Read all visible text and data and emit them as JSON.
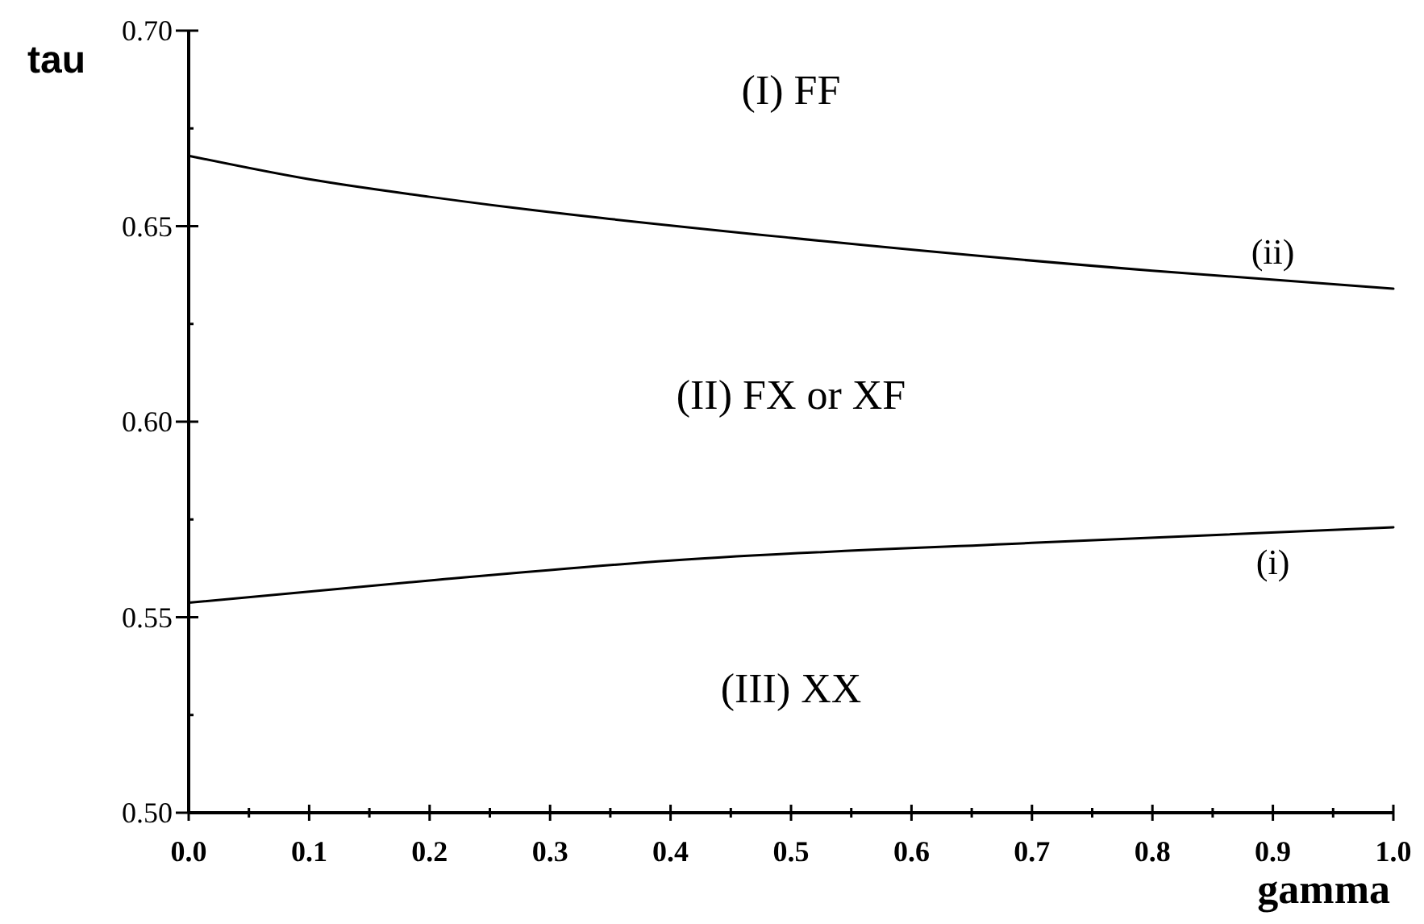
{
  "chart_data": {
    "type": "line",
    "xlabel": "gamma",
    "ylabel": "tau",
    "series": [
      {
        "name": "(ii)",
        "color": "#000000",
        "x": [
          0,
          0.1,
          0.2,
          0.5,
          0.8,
          1.0
        ],
        "values": [
          0.668,
          0.662,
          0.6575,
          0.647,
          0.6386,
          0.634
        ]
      },
      {
        "name": "(i)",
        "color": "#000000",
        "x": [
          0,
          0.2,
          0.4,
          0.7,
          1.0
        ],
        "values": [
          0.5537,
          0.5594,
          0.5645,
          0.569,
          0.573
        ]
      }
    ],
    "xlim": [
      0,
      1.0
    ],
    "ylim": [
      0.5,
      0.7
    ],
    "xticks": [
      {
        "value": 0,
        "label": "0.0"
      },
      {
        "value": 0.05,
        "label": null
      },
      {
        "value": 0.1,
        "label": "0.1"
      },
      {
        "value": 0.15,
        "label": null
      },
      {
        "value": 0.2,
        "label": "0.2"
      },
      {
        "value": 0.25,
        "label": null
      },
      {
        "value": 0.3,
        "label": "0.3"
      },
      {
        "value": 0.35,
        "label": null
      },
      {
        "value": 0.4,
        "label": "0.4"
      },
      {
        "value": 0.45,
        "label": null
      },
      {
        "value": 0.5,
        "label": "0.5"
      },
      {
        "value": 0.55,
        "label": null
      },
      {
        "value": 0.6,
        "label": "0.6"
      },
      {
        "value": 0.65,
        "label": null
      },
      {
        "value": 0.7,
        "label": "0.7"
      },
      {
        "value": 0.75,
        "label": null
      },
      {
        "value": 0.8,
        "label": "0.8"
      },
      {
        "value": 0.85,
        "label": null
      },
      {
        "value": 0.9,
        "label": "0.9"
      },
      {
        "value": 0.95,
        "label": null
      },
      {
        "value": 1.0,
        "label": "1.0"
      }
    ],
    "yticks": [
      {
        "value": 0.5,
        "label": "0.50"
      },
      {
        "value": 0.525,
        "label": null
      },
      {
        "value": 0.55,
        "label": "0.55"
      },
      {
        "value": 0.575,
        "label": null
      },
      {
        "value": 0.6,
        "label": "0.60"
      },
      {
        "value": 0.625,
        "label": null
      },
      {
        "value": 0.65,
        "label": "0.65"
      },
      {
        "value": 0.675,
        "label": null
      },
      {
        "value": 0.7,
        "label": "0.70"
      }
    ],
    "annotations": [
      "(I) FF",
      "(II) FX or XF",
      "(III) XX"
    ],
    "grid": false,
    "marker": "none",
    "line_style": "solid"
  }
}
